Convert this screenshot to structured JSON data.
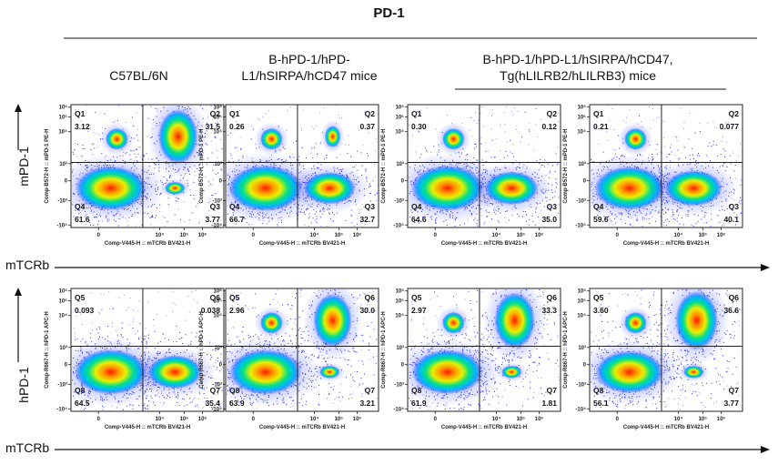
{
  "title": "PD-1",
  "groups": [
    {
      "label_lines": [
        "C57BL/6N"
      ]
    },
    {
      "label_lines": [
        "B-hPD-1/hPD-",
        "L1/hSIRPA/hCD47 mice"
      ]
    },
    {
      "label_lines": [
        "B-hPD-1/hPD-L1/hSIRPA/hCD47,",
        "Tg(hLILRB2/hLILRB3) mice"
      ]
    }
  ],
  "rows": [
    {
      "label": "mPD-1",
      "x_label": "mTCRb"
    },
    {
      "label": "hPD-1",
      "x_label": "mTCRb"
    }
  ],
  "axis_titles": {
    "x": "Comp-V445-H :: mTCRb BV421-H",
    "y_row1": "Comp-B572-H :: mPD-1 PE-H",
    "y_row2": "Comp-R667-H :: hPD-1 APC-H"
  },
  "x_ticks": [
    "0",
    "10⁴",
    "10⁵",
    "10⁶"
  ],
  "y_ticks": [
    "10⁶",
    "10⁵",
    "10⁴",
    "10³",
    "0",
    "-10³",
    "-10⁴"
  ],
  "colors": {
    "low": "#1a1aff",
    "mid": "#00e0c0",
    "high2": "#f0f000",
    "peak": "#ff2000"
  },
  "chart_data": {
    "type": "scatter",
    "description_units": "quadrant percentages (%)",
    "panels": [
      {
        "row": "mPD-1",
        "group": "C57BL/6N",
        "quadrants": {
          "Q1": "3.12",
          "Q2": "31.5",
          "Q3": "3.77",
          "Q4": "61.6"
        },
        "names": [
          "Q1",
          "Q2",
          "Q3",
          "Q4"
        ]
      },
      {
        "row": "mPD-1",
        "group": "B-hPD-1/hPD-L1/hSIRPA/hCD47 mice",
        "quadrants": {
          "Q1": "0.26",
          "Q2": "0.37",
          "Q3": "32.7",
          "Q4": "66.7"
        },
        "names": [
          "Q1",
          "Q2",
          "Q3",
          "Q4"
        ]
      },
      {
        "row": "mPD-1",
        "group": "B-hPD-1/hPD-L1/hSIRPA/hCD47, Tg(hLILRB2/hLILRB3) mice",
        "quadrants": {
          "Q1": "0.30",
          "Q2": "0.12",
          "Q3": "35.0",
          "Q4": "64.6"
        },
        "names": [
          "Q1",
          "Q2",
          "Q3",
          "Q4"
        ]
      },
      {
        "row": "mPD-1",
        "group": "B-hPD-1/hPD-L1/hSIRPA/hCD47, Tg(hLILRB2/hLILRB3) mice",
        "quadrants": {
          "Q1": "0.21",
          "Q2": "0.077",
          "Q3": "40.1",
          "Q4": "59.6"
        },
        "names": [
          "Q1",
          "Q2",
          "Q3",
          "Q4"
        ]
      },
      {
        "row": "hPD-1",
        "group": "C57BL/6N",
        "quadrants": {
          "Q1": "0.093",
          "Q2": "0.038",
          "Q3": "35.4",
          "Q4": "64.5"
        },
        "names": [
          "Q5",
          "Q6",
          "Q7",
          "Q8"
        ]
      },
      {
        "row": "hPD-1",
        "group": "B-hPD-1/hPD-L1/hSIRPA/hCD47 mice",
        "quadrants": {
          "Q1": "2.96",
          "Q2": "30.0",
          "Q3": "3.21",
          "Q4": "63.9"
        },
        "names": [
          "Q5",
          "Q6",
          "Q7",
          "Q8"
        ]
      },
      {
        "row": "hPD-1",
        "group": "B-hPD-1/hPD-L1/hSIRPA/hCD47, Tg(hLILRB2/hLILRB3) mice",
        "quadrants": {
          "Q1": "2.97",
          "Q2": "33.3",
          "Q3": "1.81",
          "Q4": "61.9"
        },
        "names": [
          "Q5",
          "Q6",
          "Q7",
          "Q8"
        ]
      },
      {
        "row": "hPD-1",
        "group": "B-hPD-1/hPD-L1/hSIRPA/hCD47, Tg(hLILRB2/hLILRB3) mice",
        "quadrants": {
          "Q1": "3.60",
          "Q2": "36.6",
          "Q3": "3.77",
          "Q4": "56.1"
        },
        "names": [
          "Q5",
          "Q6",
          "Q7",
          "Q8"
        ]
      }
    ]
  }
}
